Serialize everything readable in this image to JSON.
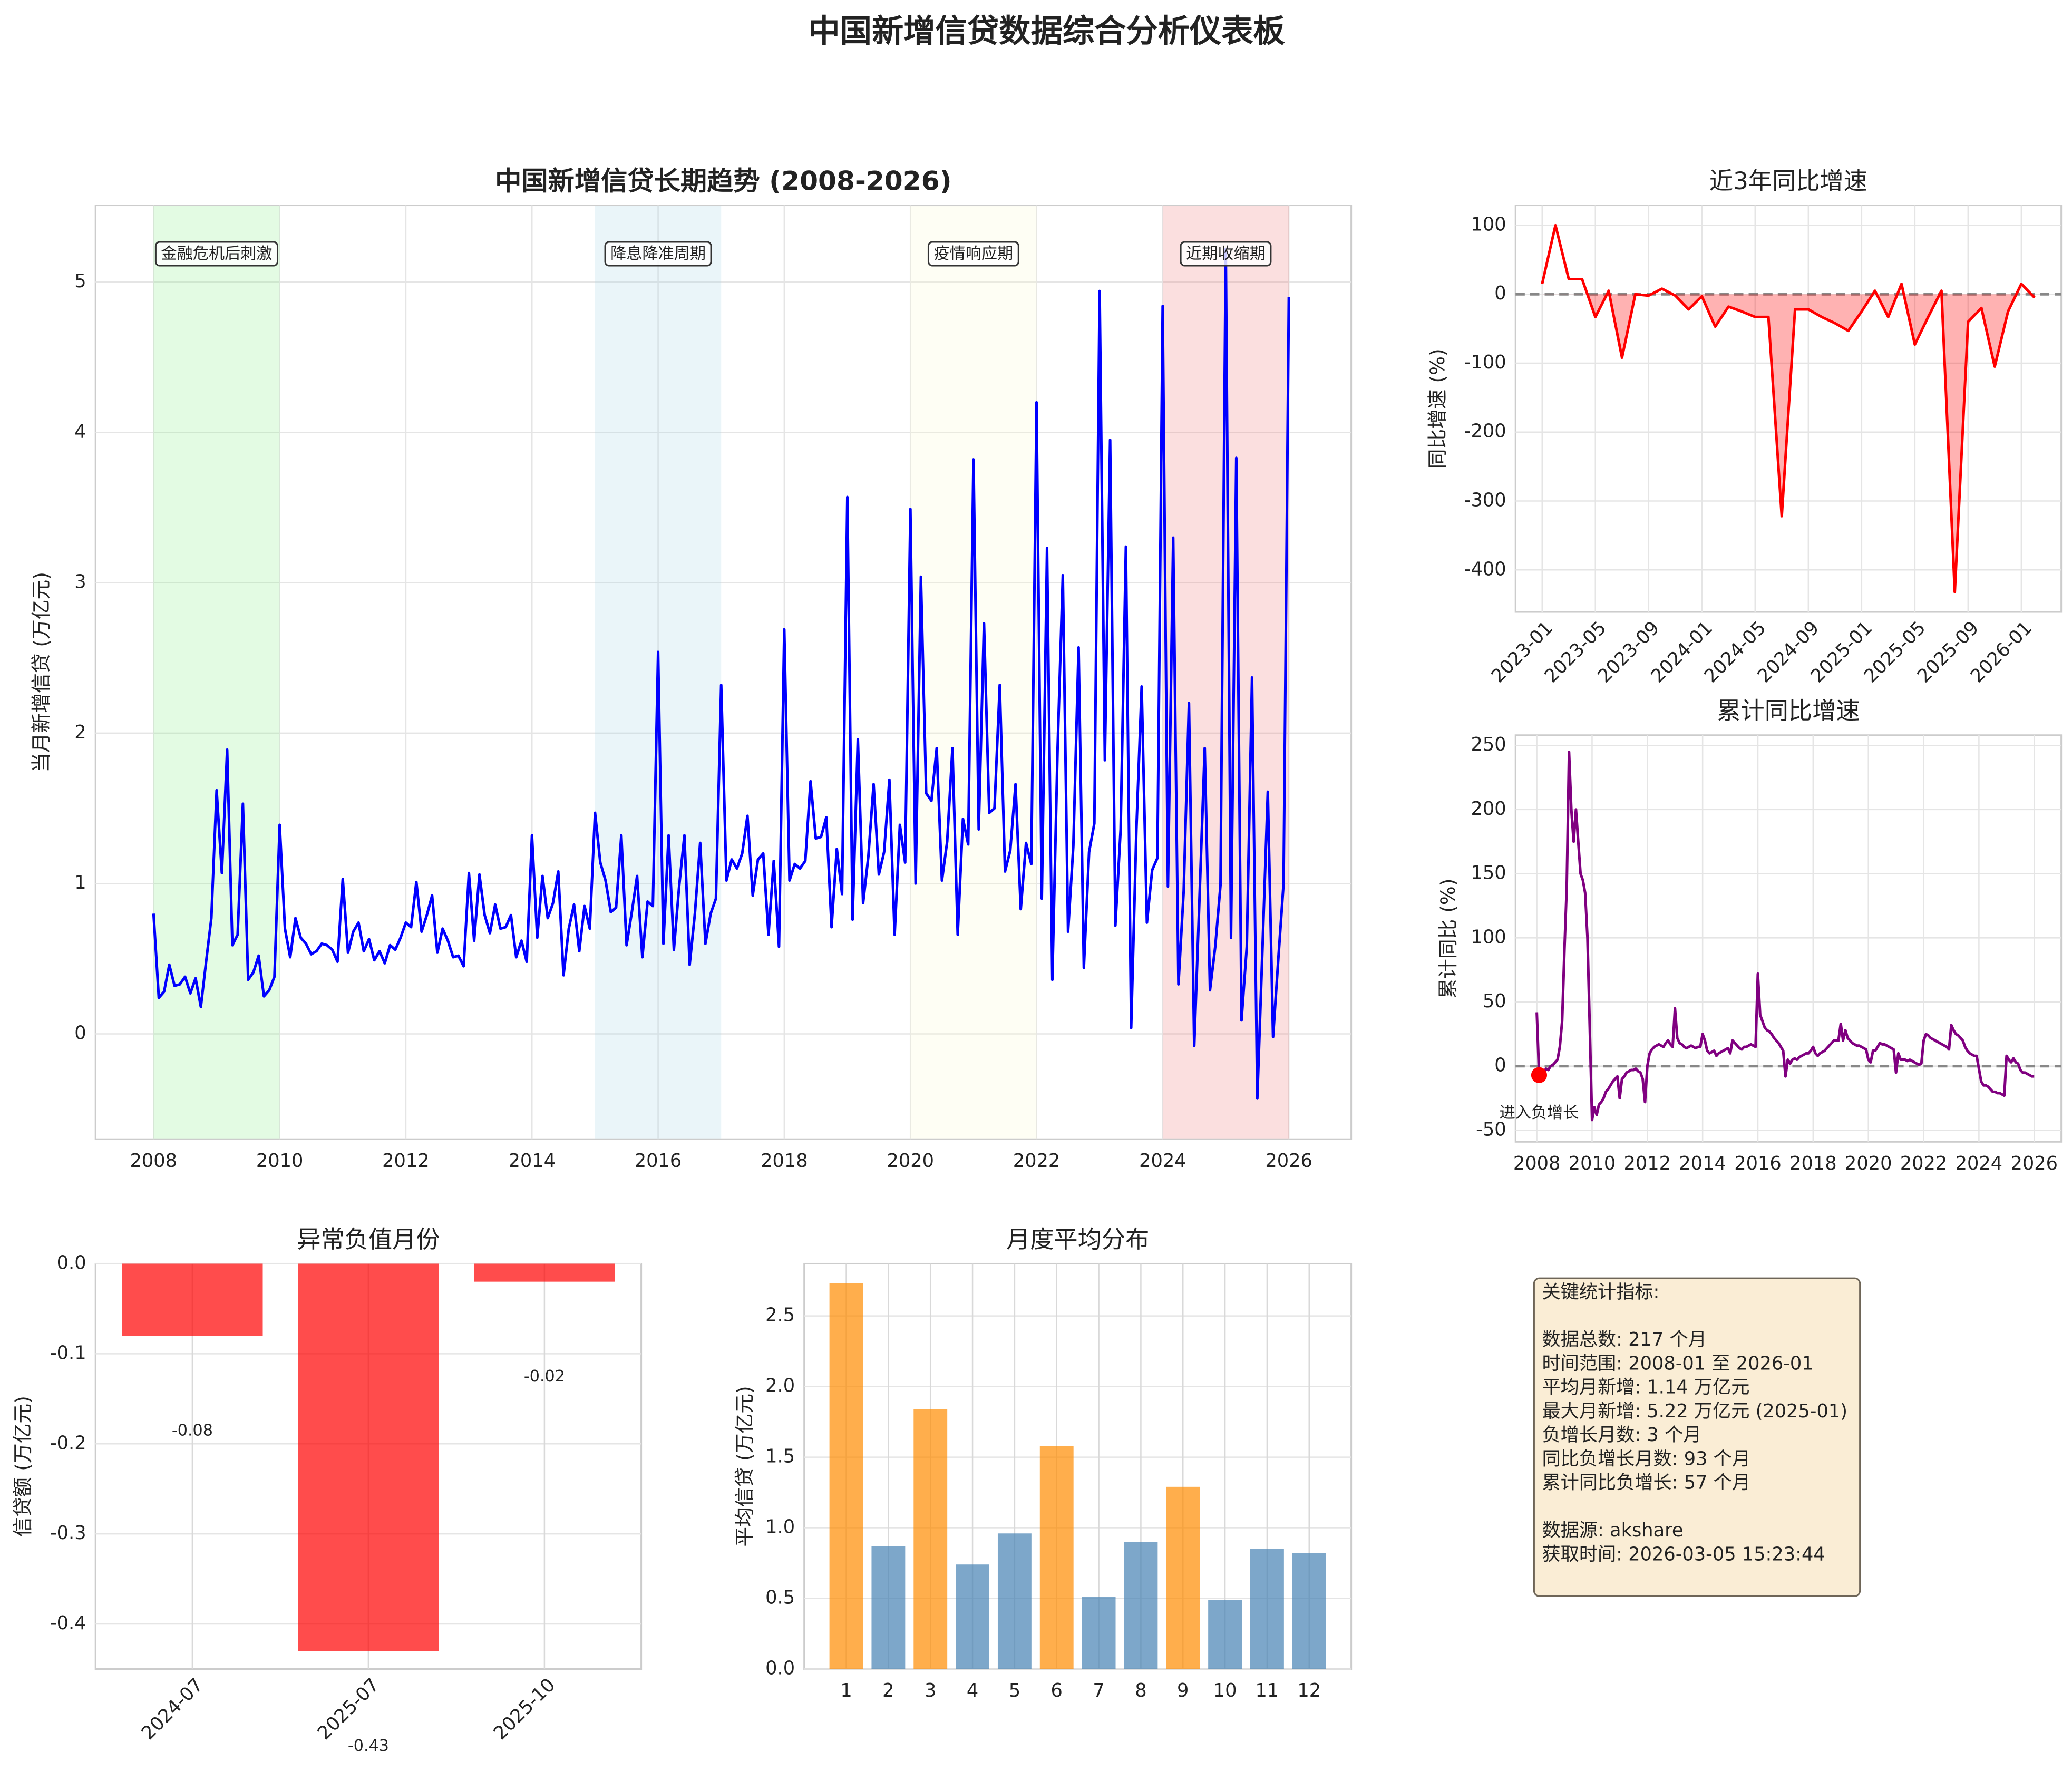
{
  "title": "中国新增信贷数据综合分析仪表板",
  "chart_data": [
    {
      "type": "line",
      "title": "中国新增信贷长期趋势 (2008-2026)",
      "ylabel": "当月新增信贷 (万亿元)",
      "color": "#0000ff",
      "x": [
        "2008-01",
        "2008-02",
        "2008-03",
        "2008-04",
        "2008-05",
        "2008-06",
        "2008-07",
        "2008-08",
        "2008-09",
        "2008-10",
        "2008-11",
        "2008-12",
        "2009-01",
        "2009-02",
        "2009-03",
        "2009-04",
        "2009-05",
        "2009-06",
        "2009-07",
        "2009-08",
        "2009-09",
        "2009-10",
        "2009-11",
        "2009-12",
        "2010-01",
        "2010-02",
        "2010-03",
        "2010-04",
        "2010-05",
        "2010-06",
        "2010-07",
        "2010-08",
        "2010-09",
        "2010-10",
        "2010-11",
        "2010-12",
        "2011-01",
        "2011-02",
        "2011-03",
        "2011-04",
        "2011-05",
        "2011-06",
        "2011-07",
        "2011-08",
        "2011-09",
        "2011-10",
        "2011-11",
        "2011-12",
        "2012-01",
        "2012-02",
        "2012-03",
        "2012-04",
        "2012-05",
        "2012-06",
        "2012-07",
        "2012-08",
        "2012-09",
        "2012-10",
        "2012-11",
        "2012-12",
        "2013-01",
        "2013-02",
        "2013-03",
        "2013-04",
        "2013-05",
        "2013-06",
        "2013-07",
        "2013-08",
        "2013-09",
        "2013-10",
        "2013-11",
        "2013-12",
        "2014-01",
        "2014-02",
        "2014-03",
        "2014-04",
        "2014-05",
        "2014-06",
        "2014-07",
        "2014-08",
        "2014-09",
        "2014-10",
        "2014-11",
        "2014-12",
        "2015-01",
        "2015-02",
        "2015-03",
        "2015-04",
        "2015-05",
        "2015-06",
        "2015-07",
        "2015-08",
        "2015-09",
        "2015-10",
        "2015-11",
        "2015-12",
        "2016-01",
        "2016-02",
        "2016-03",
        "2016-04",
        "2016-05",
        "2016-06",
        "2016-07",
        "2016-08",
        "2016-09",
        "2016-10",
        "2016-11",
        "2016-12",
        "2017-01",
        "2017-02",
        "2017-03",
        "2017-04",
        "2017-05",
        "2017-06",
        "2017-07",
        "2017-08",
        "2017-09",
        "2017-10",
        "2017-11",
        "2017-12",
        "2018-01",
        "2018-02",
        "2018-03",
        "2018-04",
        "2018-05",
        "2018-06",
        "2018-07",
        "2018-08",
        "2018-09",
        "2018-10",
        "2018-11",
        "2018-12",
        "2019-01",
        "2019-02",
        "2019-03",
        "2019-04",
        "2019-05",
        "2019-06",
        "2019-07",
        "2019-08",
        "2019-09",
        "2019-10",
        "2019-11",
        "2019-12",
        "2020-01",
        "2020-02",
        "2020-03",
        "2020-04",
        "2020-05",
        "2020-06",
        "2020-07",
        "2020-08",
        "2020-09",
        "2020-10",
        "2020-11",
        "2020-12",
        "2021-01",
        "2021-02",
        "2021-03",
        "2021-04",
        "2021-05",
        "2021-06",
        "2021-07",
        "2021-08",
        "2021-09",
        "2021-10",
        "2021-11",
        "2021-12",
        "2022-01",
        "2022-02",
        "2022-03",
        "2022-04",
        "2022-05",
        "2022-06",
        "2022-07",
        "2022-08",
        "2022-09",
        "2022-10",
        "2022-11",
        "2022-12",
        "2023-01",
        "2023-02",
        "2023-03",
        "2023-04",
        "2023-05",
        "2023-06",
        "2023-07",
        "2023-08",
        "2023-09",
        "2023-10",
        "2023-11",
        "2023-12",
        "2024-01",
        "2024-02",
        "2024-03",
        "2024-04",
        "2024-05",
        "2024-06",
        "2024-07",
        "2024-08",
        "2024-09",
        "2024-10",
        "2024-11",
        "2024-12",
        "2025-01",
        "2025-02",
        "2025-03",
        "2025-04",
        "2025-05",
        "2025-06",
        "2025-07",
        "2025-08",
        "2025-09",
        "2025-10",
        "2025-11",
        "2025-12",
        "2026-01"
      ],
      "values": [
        0.8,
        0.24,
        0.28,
        0.46,
        0.32,
        0.33,
        0.38,
        0.27,
        0.37,
        0.18,
        0.48,
        0.77,
        1.62,
        1.07,
        1.89,
        0.59,
        0.66,
        1.53,
        0.36,
        0.41,
        0.52,
        0.25,
        0.29,
        0.38,
        1.39,
        0.7,
        0.51,
        0.77,
        0.64,
        0.6,
        0.53,
        0.55,
        0.6,
        0.59,
        0.56,
        0.48,
        1.03,
        0.54,
        0.68,
        0.74,
        0.55,
        0.63,
        0.49,
        0.55,
        0.47,
        0.59,
        0.56,
        0.64,
        0.74,
        0.71,
        1.01,
        0.68,
        0.79,
        0.92,
        0.54,
        0.7,
        0.62,
        0.51,
        0.52,
        0.45,
        1.07,
        0.62,
        1.06,
        0.79,
        0.67,
        0.86,
        0.7,
        0.71,
        0.79,
        0.51,
        0.62,
        0.48,
        1.32,
        0.64,
        1.05,
        0.77,
        0.87,
        1.08,
        0.39,
        0.7,
        0.86,
        0.55,
        0.85,
        0.7,
        1.47,
        1.14,
        1.02,
        0.81,
        0.84,
        1.32,
        0.59,
        0.81,
        1.05,
        0.51,
        0.88,
        0.85,
        2.54,
        0.6,
        1.32,
        0.56,
        0.98,
        1.32,
        0.46,
        0.8,
        1.27,
        0.6,
        0.8,
        0.9,
        2.32,
        1.02,
        1.16,
        1.1,
        1.2,
        1.45,
        0.92,
        1.16,
        1.2,
        0.66,
        1.15,
        0.58,
        2.69,
        1.02,
        1.13,
        1.1,
        1.15,
        1.68,
        1.3,
        1.31,
        1.44,
        0.71,
        1.23,
        0.93,
        3.57,
        0.76,
        1.96,
        0.87,
        1.18,
        1.66,
        1.06,
        1.21,
        1.69,
        0.66,
        1.39,
        1.14,
        3.49,
        1.0,
        3.04,
        1.6,
        1.55,
        1.9,
        1.02,
        1.28,
        1.9,
        0.66,
        1.43,
        1.26,
        3.82,
        1.36,
        2.73,
        1.47,
        1.5,
        2.32,
        1.08,
        1.22,
        1.66,
        0.83,
        1.27,
        1.13,
        4.2,
        0.9,
        3.23,
        0.36,
        1.89,
        3.05,
        0.68,
        1.25,
        2.57,
        0.44,
        1.21,
        1.4,
        4.94,
        1.82,
        3.95,
        0.72,
        1.36,
        3.24,
        0.04,
        1.36,
        2.31,
        0.74,
        1.09,
        1.17,
        4.84,
        0.98,
        3.3,
        0.33,
        0.95,
        2.2,
        -0.08,
        0.9,
        1.9,
        0.29,
        0.58,
        0.99,
        5.22,
        0.64,
        3.83,
        0.09,
        0.58,
        2.37,
        -0.43,
        0.58,
        1.61,
        -0.02,
        0.5,
        1.0,
        4.9
      ],
      "xlim": [
        2007.08,
        2026.99
      ],
      "xticks": [
        2008,
        2010,
        2012,
        2014,
        2016,
        2018,
        2020,
        2022,
        2024,
        2026
      ],
      "ylim": [
        -0.7,
        5.51
      ],
      "yticks": [
        0,
        1,
        2,
        3,
        4,
        5
      ],
      "grid": true,
      "regions": [
        {
          "start": 2008,
          "end": 2010,
          "label": "金融危机后刺激",
          "color": "#90ee90"
        },
        {
          "start": 2015,
          "end": 2017,
          "label": "降息降准周期",
          "color": "#add8e6"
        },
        {
          "start": 2020,
          "end": 2022,
          "label": "疫情响应期",
          "color": "#fafad2"
        },
        {
          "start": 2024,
          "end": 2026,
          "label": "近期收缩期",
          "color": "#f08080"
        }
      ]
    },
    {
      "type": "line",
      "title": "近3年同比增速",
      "ylabel": "同比增速 (%)",
      "color": "#ff0000",
      "x": [
        "2023-01",
        "2023-02",
        "2023-03",
        "2023-04",
        "2023-05",
        "2023-06",
        "2023-07",
        "2023-08",
        "2023-09",
        "2023-10",
        "2023-11",
        "2023-12",
        "2024-01",
        "2024-02",
        "2024-03",
        "2024-04",
        "2024-05",
        "2024-06",
        "2024-07",
        "2024-08",
        "2024-09",
        "2024-10",
        "2024-11",
        "2024-12",
        "2025-01",
        "2025-02",
        "2025-03",
        "2025-04",
        "2025-05",
        "2025-06",
        "2025-07",
        "2025-08",
        "2025-09",
        "2025-10",
        "2025-11",
        "2025-12",
        "2026-01",
        "2026-02"
      ],
      "values": [
        15,
        100,
        22,
        22,
        -33,
        5,
        -92,
        0,
        -2,
        8,
        -2,
        -22,
        -3,
        -47,
        -18,
        -25,
        -33,
        -33,
        -322,
        -22,
        -22,
        -33,
        -42,
        -53,
        -25,
        5,
        -33,
        15,
        -73,
        -33,
        5,
        -432,
        -40,
        -20,
        -105,
        -25,
        15,
        -5
      ],
      "xlim": [
        "2022-11",
        "2026-04"
      ],
      "xticks": [
        "2023-01",
        "2023-05",
        "2023-09",
        "2024-01",
        "2024-05",
        "2024-09",
        "2025-01",
        "2025-05",
        "2025-09",
        "2026-01"
      ],
      "xtick_rotation": 45,
      "ylim": [
        -461,
        129
      ],
      "yticks": [
        -400,
        -300,
        -200,
        -100,
        0,
        100
      ],
      "grid": true,
      "zero_line": true,
      "fill_negative": true
    },
    {
      "type": "line",
      "title": "累计同比增速",
      "ylabel": "累计同比 (%)",
      "color": "#800080",
      "x": [
        "2008-01",
        "2008-02",
        "2008-03",
        "2008-04",
        "2008-05",
        "2008-06",
        "2008-07",
        "2008-08",
        "2008-09",
        "2008-10",
        "2008-11",
        "2008-12",
        "2009-01",
        "2009-02",
        "2009-03",
        "2009-04",
        "2009-05",
        "2009-06",
        "2009-07",
        "2009-08",
        "2009-09",
        "2009-10",
        "2009-11",
        "2009-12",
        "2010-01",
        "2010-02",
        "2010-03",
        "2010-04",
        "2010-05",
        "2010-06",
        "2010-07",
        "2010-08",
        "2010-09",
        "2010-10",
        "2010-11",
        "2010-12",
        "2011-01",
        "2011-02",
        "2011-03",
        "2011-04",
        "2011-05",
        "2011-06",
        "2011-07",
        "2011-08",
        "2011-09",
        "2011-10",
        "2011-11",
        "2011-12",
        "2012-01",
        "2012-02",
        "2012-03",
        "2012-04",
        "2012-05",
        "2012-06",
        "2012-07",
        "2012-08",
        "2012-09",
        "2012-10",
        "2012-11",
        "2012-12",
        "2013-01",
        "2013-02",
        "2013-03",
        "2013-04",
        "2013-05",
        "2013-06",
        "2013-07",
        "2013-08",
        "2013-09",
        "2013-10",
        "2013-11",
        "2013-12",
        "2014-01",
        "2014-02",
        "2014-03",
        "2014-04",
        "2014-05",
        "2014-06",
        "2014-07",
        "2014-08",
        "2014-09",
        "2014-10",
        "2014-11",
        "2014-12",
        "2015-01",
        "2015-02",
        "2015-03",
        "2015-04",
        "2015-05",
        "2015-06",
        "2015-07",
        "2015-08",
        "2015-09",
        "2015-10",
        "2015-11",
        "2015-12",
        "2016-01",
        "2016-02",
        "2016-03",
        "2016-04",
        "2016-05",
        "2016-06",
        "2016-07",
        "2016-08",
        "2016-09",
        "2016-10",
        "2016-11",
        "2016-12",
        "2017-01",
        "2017-02",
        "2017-03",
        "2017-04",
        "2017-05",
        "2017-06",
        "2017-07",
        "2017-08",
        "2017-09",
        "2017-10",
        "2017-11",
        "2017-12",
        "2018-01",
        "2018-02",
        "2018-03",
        "2018-04",
        "2018-05",
        "2018-06",
        "2018-07",
        "2018-08",
        "2018-09",
        "2018-10",
        "2018-11",
        "2018-12",
        "2019-01",
        "2019-02",
        "2019-03",
        "2019-04",
        "2019-05",
        "2019-06",
        "2019-07",
        "2019-08",
        "2019-09",
        "2019-10",
        "2019-11",
        "2019-12",
        "2020-01",
        "2020-02",
        "2020-03",
        "2020-04",
        "2020-05",
        "2020-06",
        "2020-07",
        "2020-08",
        "2020-09",
        "2020-10",
        "2020-11",
        "2020-12",
        "2021-01",
        "2021-02",
        "2021-03",
        "2021-04",
        "2021-05",
        "2021-06",
        "2021-07",
        "2021-08",
        "2021-09",
        "2021-10",
        "2021-11",
        "2021-12",
        "2022-01",
        "2022-02",
        "2022-03",
        "2022-04",
        "2022-05",
        "2022-06",
        "2022-07",
        "2022-08",
        "2022-09",
        "2022-10",
        "2022-11",
        "2022-12",
        "2023-01",
        "2023-02",
        "2023-03",
        "2023-04",
        "2023-05",
        "2023-06",
        "2023-07",
        "2023-08",
        "2023-09",
        "2023-10",
        "2023-11",
        "2023-12",
        "2024-01",
        "2024-02",
        "2024-03",
        "2024-04",
        "2024-05",
        "2024-06",
        "2024-07",
        "2024-08",
        "2024-09",
        "2024-10",
        "2024-11",
        "2024-12",
        "2025-01",
        "2025-02",
        "2025-03",
        "2025-04",
        "2025-05",
        "2025-06",
        "2025-07",
        "2025-08",
        "2025-09",
        "2025-10",
        "2025-11",
        "2025-12",
        "2026-01"
      ],
      "values": [
        42,
        -7,
        -3,
        -5,
        -2,
        -3,
        0,
        1,
        3,
        5,
        15,
        35,
        90,
        140,
        245,
        200,
        175,
        200,
        175,
        150,
        145,
        135,
        100,
        30,
        -42,
        -32,
        -38,
        -30,
        -28,
        -25,
        -20,
        -18,
        -15,
        -12,
        -10,
        -8,
        -25,
        -10,
        -8,
        -5,
        -4,
        -3,
        -3,
        -2,
        -4,
        -5,
        -10,
        -28,
        0,
        10,
        13,
        15,
        16,
        17,
        16,
        15,
        18,
        20,
        17,
        15,
        45,
        22,
        18,
        17,
        15,
        14,
        15,
        16,
        15,
        14,
        15,
        15,
        25,
        20,
        12,
        10,
        11,
        12,
        8,
        10,
        11,
        12,
        13,
        14,
        10,
        20,
        18,
        16,
        14,
        13,
        15,
        15,
        16,
        17,
        16,
        15,
        72,
        40,
        35,
        30,
        28,
        27,
        25,
        22,
        20,
        18,
        15,
        12,
        -8,
        5,
        2,
        5,
        6,
        5,
        7,
        8,
        9,
        10,
        10,
        12,
        15,
        10,
        8,
        10,
        11,
        12,
        14,
        16,
        18,
        20,
        20,
        20,
        33,
        20,
        28,
        22,
        20,
        18,
        17,
        16,
        16,
        15,
        14,
        13,
        5,
        3,
        12,
        12,
        15,
        18,
        17,
        17,
        16,
        15,
        14,
        13,
        -5,
        10,
        5,
        5,
        5,
        4,
        5,
        4,
        3,
        2,
        1,
        2,
        20,
        25,
        24,
        22,
        21,
        20,
        19,
        18,
        17,
        16,
        15,
        13,
        32,
        28,
        25,
        24,
        22,
        20,
        15,
        12,
        10,
        9,
        8,
        8,
        -2,
        -12,
        -15,
        -15,
        -16,
        -18,
        -20,
        -20,
        -21,
        -21,
        -22,
        -23,
        8,
        5,
        3,
        6,
        3,
        2,
        -3,
        -5,
        -5,
        -6,
        -7,
        -8,
        -8
      ],
      "xlim": [
        2007.23,
        2026.98
      ],
      "xticks": [
        2008,
        2010,
        2012,
        2014,
        2016,
        2018,
        2020,
        2022,
        2024,
        2026
      ],
      "ylim": [
        -59,
        258
      ],
      "yticks": [
        -50,
        0,
        50,
        100,
        150,
        200,
        250
      ],
      "grid": true,
      "zero_line": true,
      "marker_at": "2008-02",
      "marker_color": "#ff0000",
      "annotation": "进入负增长"
    },
    {
      "type": "bar",
      "title": "异常负值月份",
      "ylabel": "信贷额 (万亿元)",
      "color": "#ff0000",
      "alpha": 0.7,
      "categories": [
        "2024-07",
        "2025-07",
        "2025-10"
      ],
      "values": [
        -0.08,
        -0.43,
        -0.02
      ],
      "value_labels": [
        "-0.08",
        "-0.43",
        "-0.02"
      ],
      "xtick_rotation": 45,
      "ylim": [
        -0.45,
        0
      ],
      "yticks": [
        {
          "value": 0,
          "label": "0.0"
        },
        -0.1,
        -0.2,
        -0.3,
        -0.4
      ],
      "grid": true
    },
    {
      "type": "bar",
      "title": "月度平均分布",
      "ylabel": "平均信贷 (万亿元)",
      "alpha": 0.7,
      "categories": [
        1,
        2,
        3,
        4,
        5,
        6,
        7,
        8,
        9,
        10,
        11,
        12
      ],
      "values": [
        2.73,
        0.87,
        1.84,
        0.74,
        0.96,
        1.58,
        0.51,
        0.9,
        1.29,
        0.49,
        0.85,
        0.82
      ],
      "colors": [
        "#ff8c00",
        "#4682b4",
        "#ff8c00",
        "#4682b4",
        "#4682b4",
        "#ff8c00",
        "#4682b4",
        "#4682b4",
        "#ff8c00",
        "#4682b4",
        "#4682b4",
        "#4682b4"
      ],
      "ylim": [
        0,
        2.87
      ],
      "yticks": [
        {
          "value": 0,
          "label": "0.0"
        },
        0.5,
        {
          "value": 1,
          "label": "1.0"
        },
        1.5,
        {
          "value": 2,
          "label": "2.0"
        },
        2.5
      ],
      "grid": true
    }
  ],
  "stats_box": {
    "heading": "关键统计指标:",
    "items": [
      "数据总数: 217 个月",
      "时间范围: 2008-01 至 2026-01",
      "平均月新增: 1.14 万亿元",
      "最大月新增: 5.22 万亿元 (2025-01)",
      "负增长月数: 3 个月",
      "同比负增长月数: 93 个月",
      "累计同比负增长: 57 个月"
    ],
    "source": [
      "数据源: akshare",
      "获取时间: 2026-03-05 15:23:44"
    ]
  }
}
